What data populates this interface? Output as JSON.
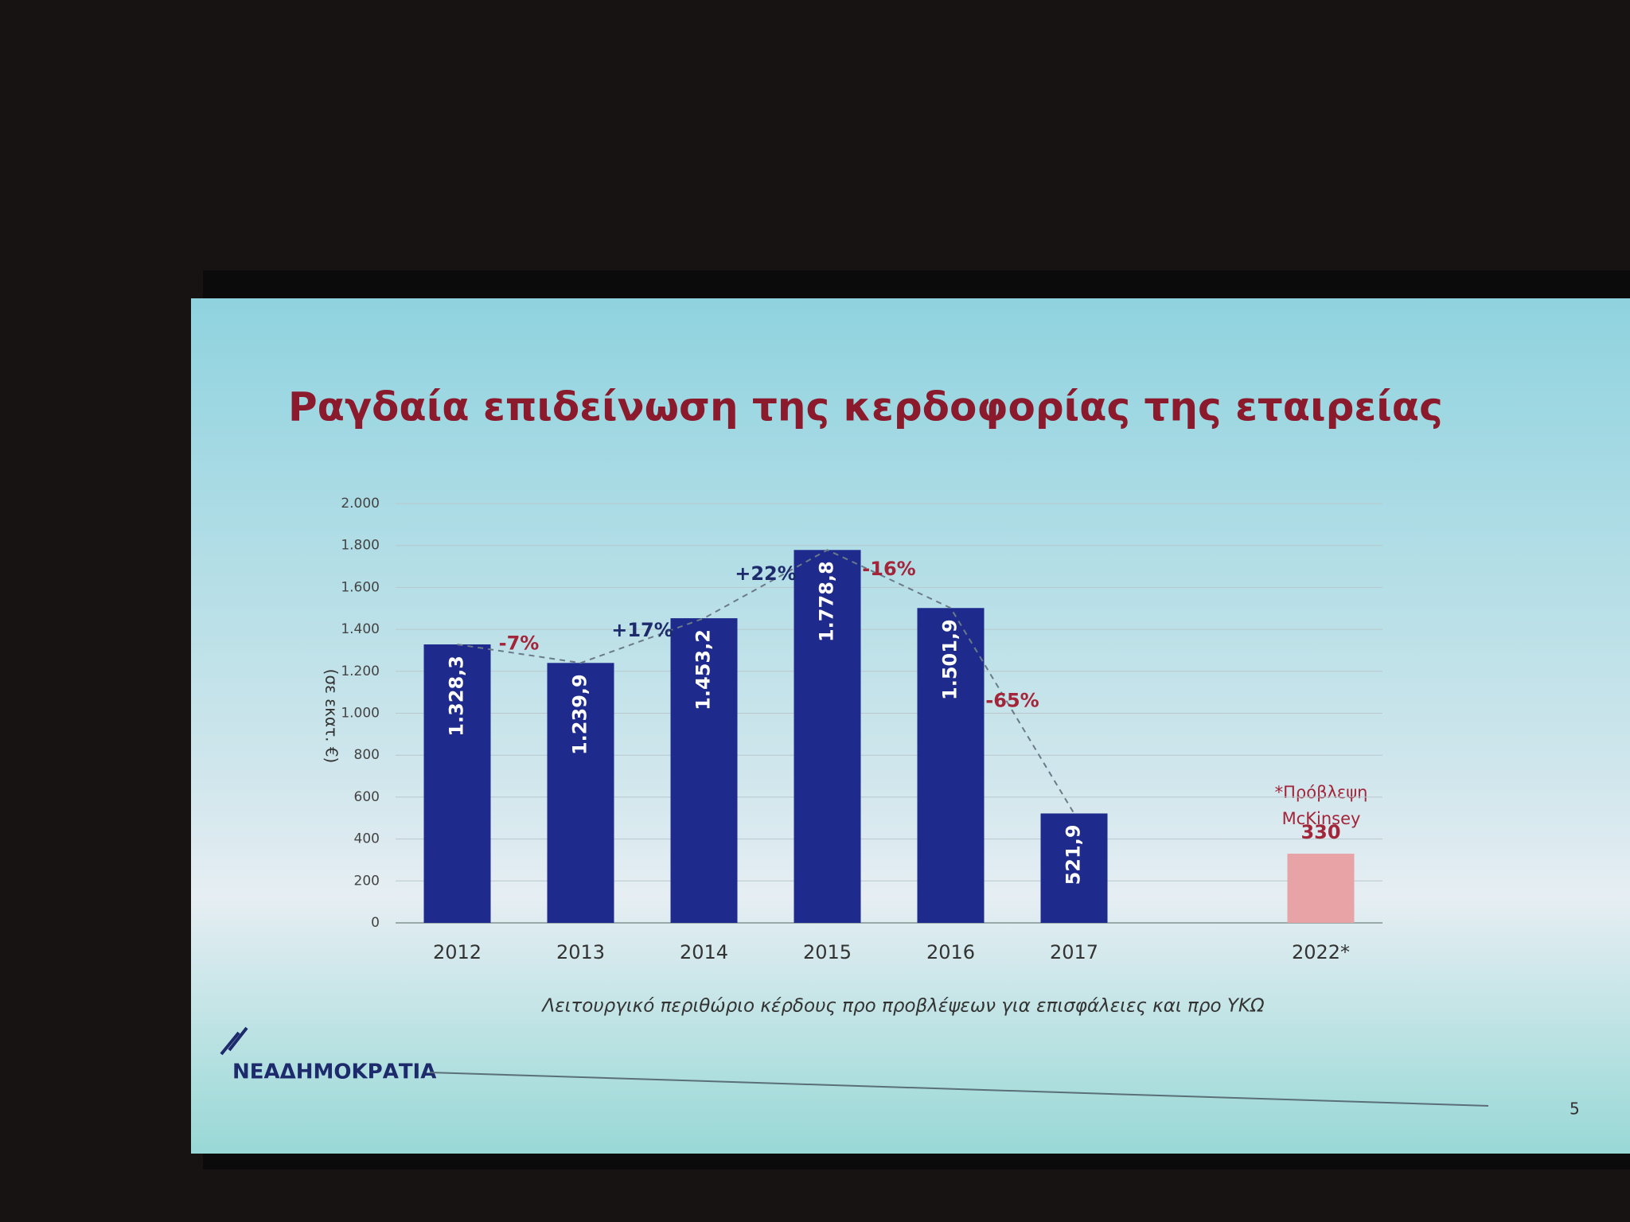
{
  "chart_data": {
    "type": "bar",
    "title": "Ραγδαία επιδείνωση της κερδοφορίας της εταιρείας",
    "y_label": "(σε εκατ. €)",
    "x_label": "Λειτουργικό περιθώριο κέρδους προ προβλέψεων για επισφάλειες και προ ΥΚΩ",
    "categories": [
      "2012",
      "2013",
      "2014",
      "2015",
      "2016",
      "2017",
      null,
      "2022*"
    ],
    "values": [
      1328.3,
      1239.9,
      1453.2,
      1778.8,
      1501.9,
      521.9,
      null,
      330
    ],
    "value_labels": [
      "1.328,3",
      "1.239,9",
      "1.453,2",
      "1.778,8",
      "1.501,9",
      "521,9",
      null,
      "330"
    ],
    "colors": [
      "#1f2b8c",
      "#1f2b8c",
      "#1f2b8c",
      "#1f2b8c",
      "#1f2b8c",
      "#1f2b8c",
      null,
      "#e7a3a6"
    ],
    "change_labels": [
      "-7%",
      "+17%",
      "+22%",
      "-16%",
      "-65%"
    ],
    "change_colors": [
      "#a3253a",
      "#1d2a6b",
      "#1d2a6b",
      "#a3253a",
      "#a3253a"
    ],
    "note": [
      "*Πρόβλεψη",
      "McKinsey"
    ],
    "ylim": [
      0,
      2000
    ],
    "yticks": [
      0,
      200,
      400,
      600,
      800,
      {
        "value": 1000,
        "label": "1.000"
      },
      {
        "value": 1200,
        "label": "1.200"
      },
      {
        "value": 1400,
        "label": "1.400"
      },
      {
        "value": 1600,
        "label": "1.600"
      },
      {
        "value": 1800,
        "label": "1.800"
      },
      {
        "value": 2000,
        "label": "2.000"
      }
    ],
    "grid": true
  },
  "footer": {
    "logo": "ΝΕΑΔΗΜΟΚΡΑΤΙΑ",
    "page_number": "5"
  }
}
